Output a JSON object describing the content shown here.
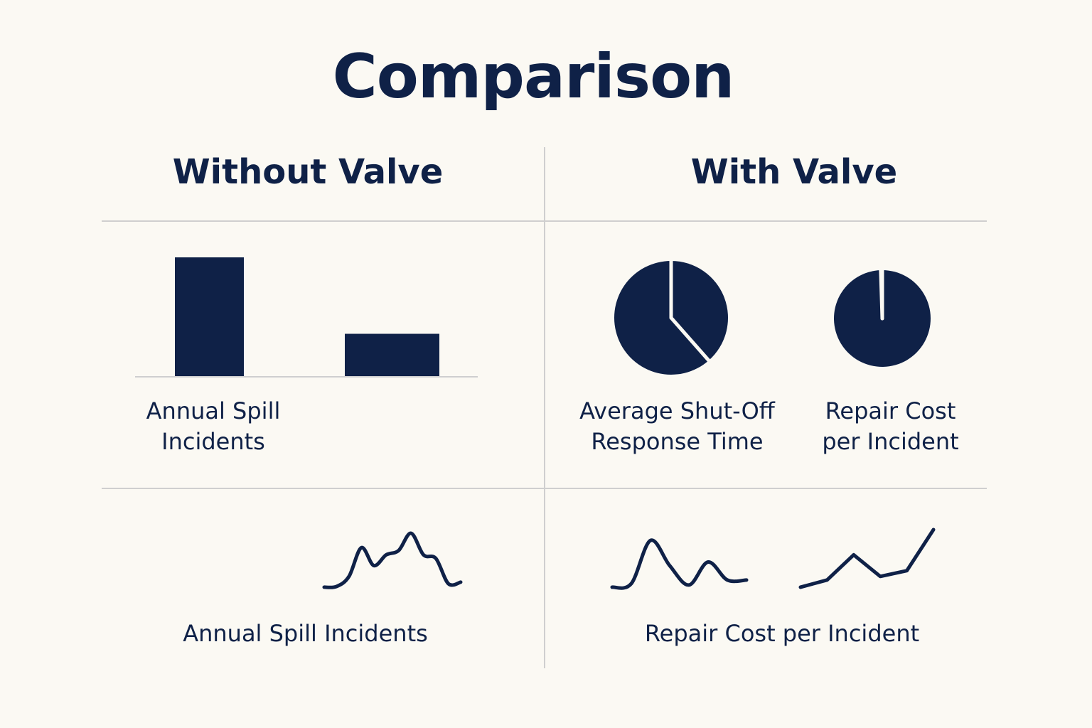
{
  "page": {
    "title": "Comparison",
    "left_heading": "Without Valve",
    "right_heading": "With Valve"
  },
  "colors": {
    "ink": "#0f2147",
    "background": "#fbf9f3",
    "rule": "#cfcfcf"
  },
  "chart_data": [
    {
      "type": "bar",
      "panel": "Without Valve",
      "label_lines": [
        "Annual Spill",
        "Incidents"
      ],
      "categories": [
        "",
        ""
      ],
      "values": [
        100,
        36
      ],
      "ylim": [
        0,
        100
      ]
    },
    {
      "type": "pie",
      "panel": "With Valve",
      "label_lines": [
        "Average Shut-Off",
        "Response Time"
      ],
      "slices": [
        {
          "share": 0.385
        },
        {
          "share": 0.615
        }
      ]
    },
    {
      "type": "pie",
      "panel": "With Valve",
      "label_lines": [
        "Repair Cost",
        "per Incident"
      ],
      "slices": [
        {
          "share": 0.995
        },
        {
          "share": 0.005
        }
      ]
    },
    {
      "type": "line",
      "panel": "Without Valve",
      "label": "Annual Spill Incidents",
      "x": [
        0,
        1,
        2,
        3,
        4,
        5,
        6,
        7,
        8,
        9,
        10,
        11
      ],
      "y": [
        5,
        6,
        20,
        60,
        35,
        50,
        56,
        80,
        50,
        45,
        10,
        12
      ]
    },
    {
      "type": "line",
      "panel": "With Valve",
      "label": "Repair Cost per Incident",
      "series": [
        {
          "x": [
            0,
            1,
            2,
            3,
            4,
            5,
            6,
            7
          ],
          "y": [
            5,
            10,
            70,
            35,
            8,
            40,
            15,
            15
          ]
        },
        {
          "x": [
            0,
            1,
            2,
            3,
            4,
            5
          ],
          "y": [
            5,
            15,
            50,
            20,
            28,
            85
          ]
        }
      ]
    }
  ]
}
